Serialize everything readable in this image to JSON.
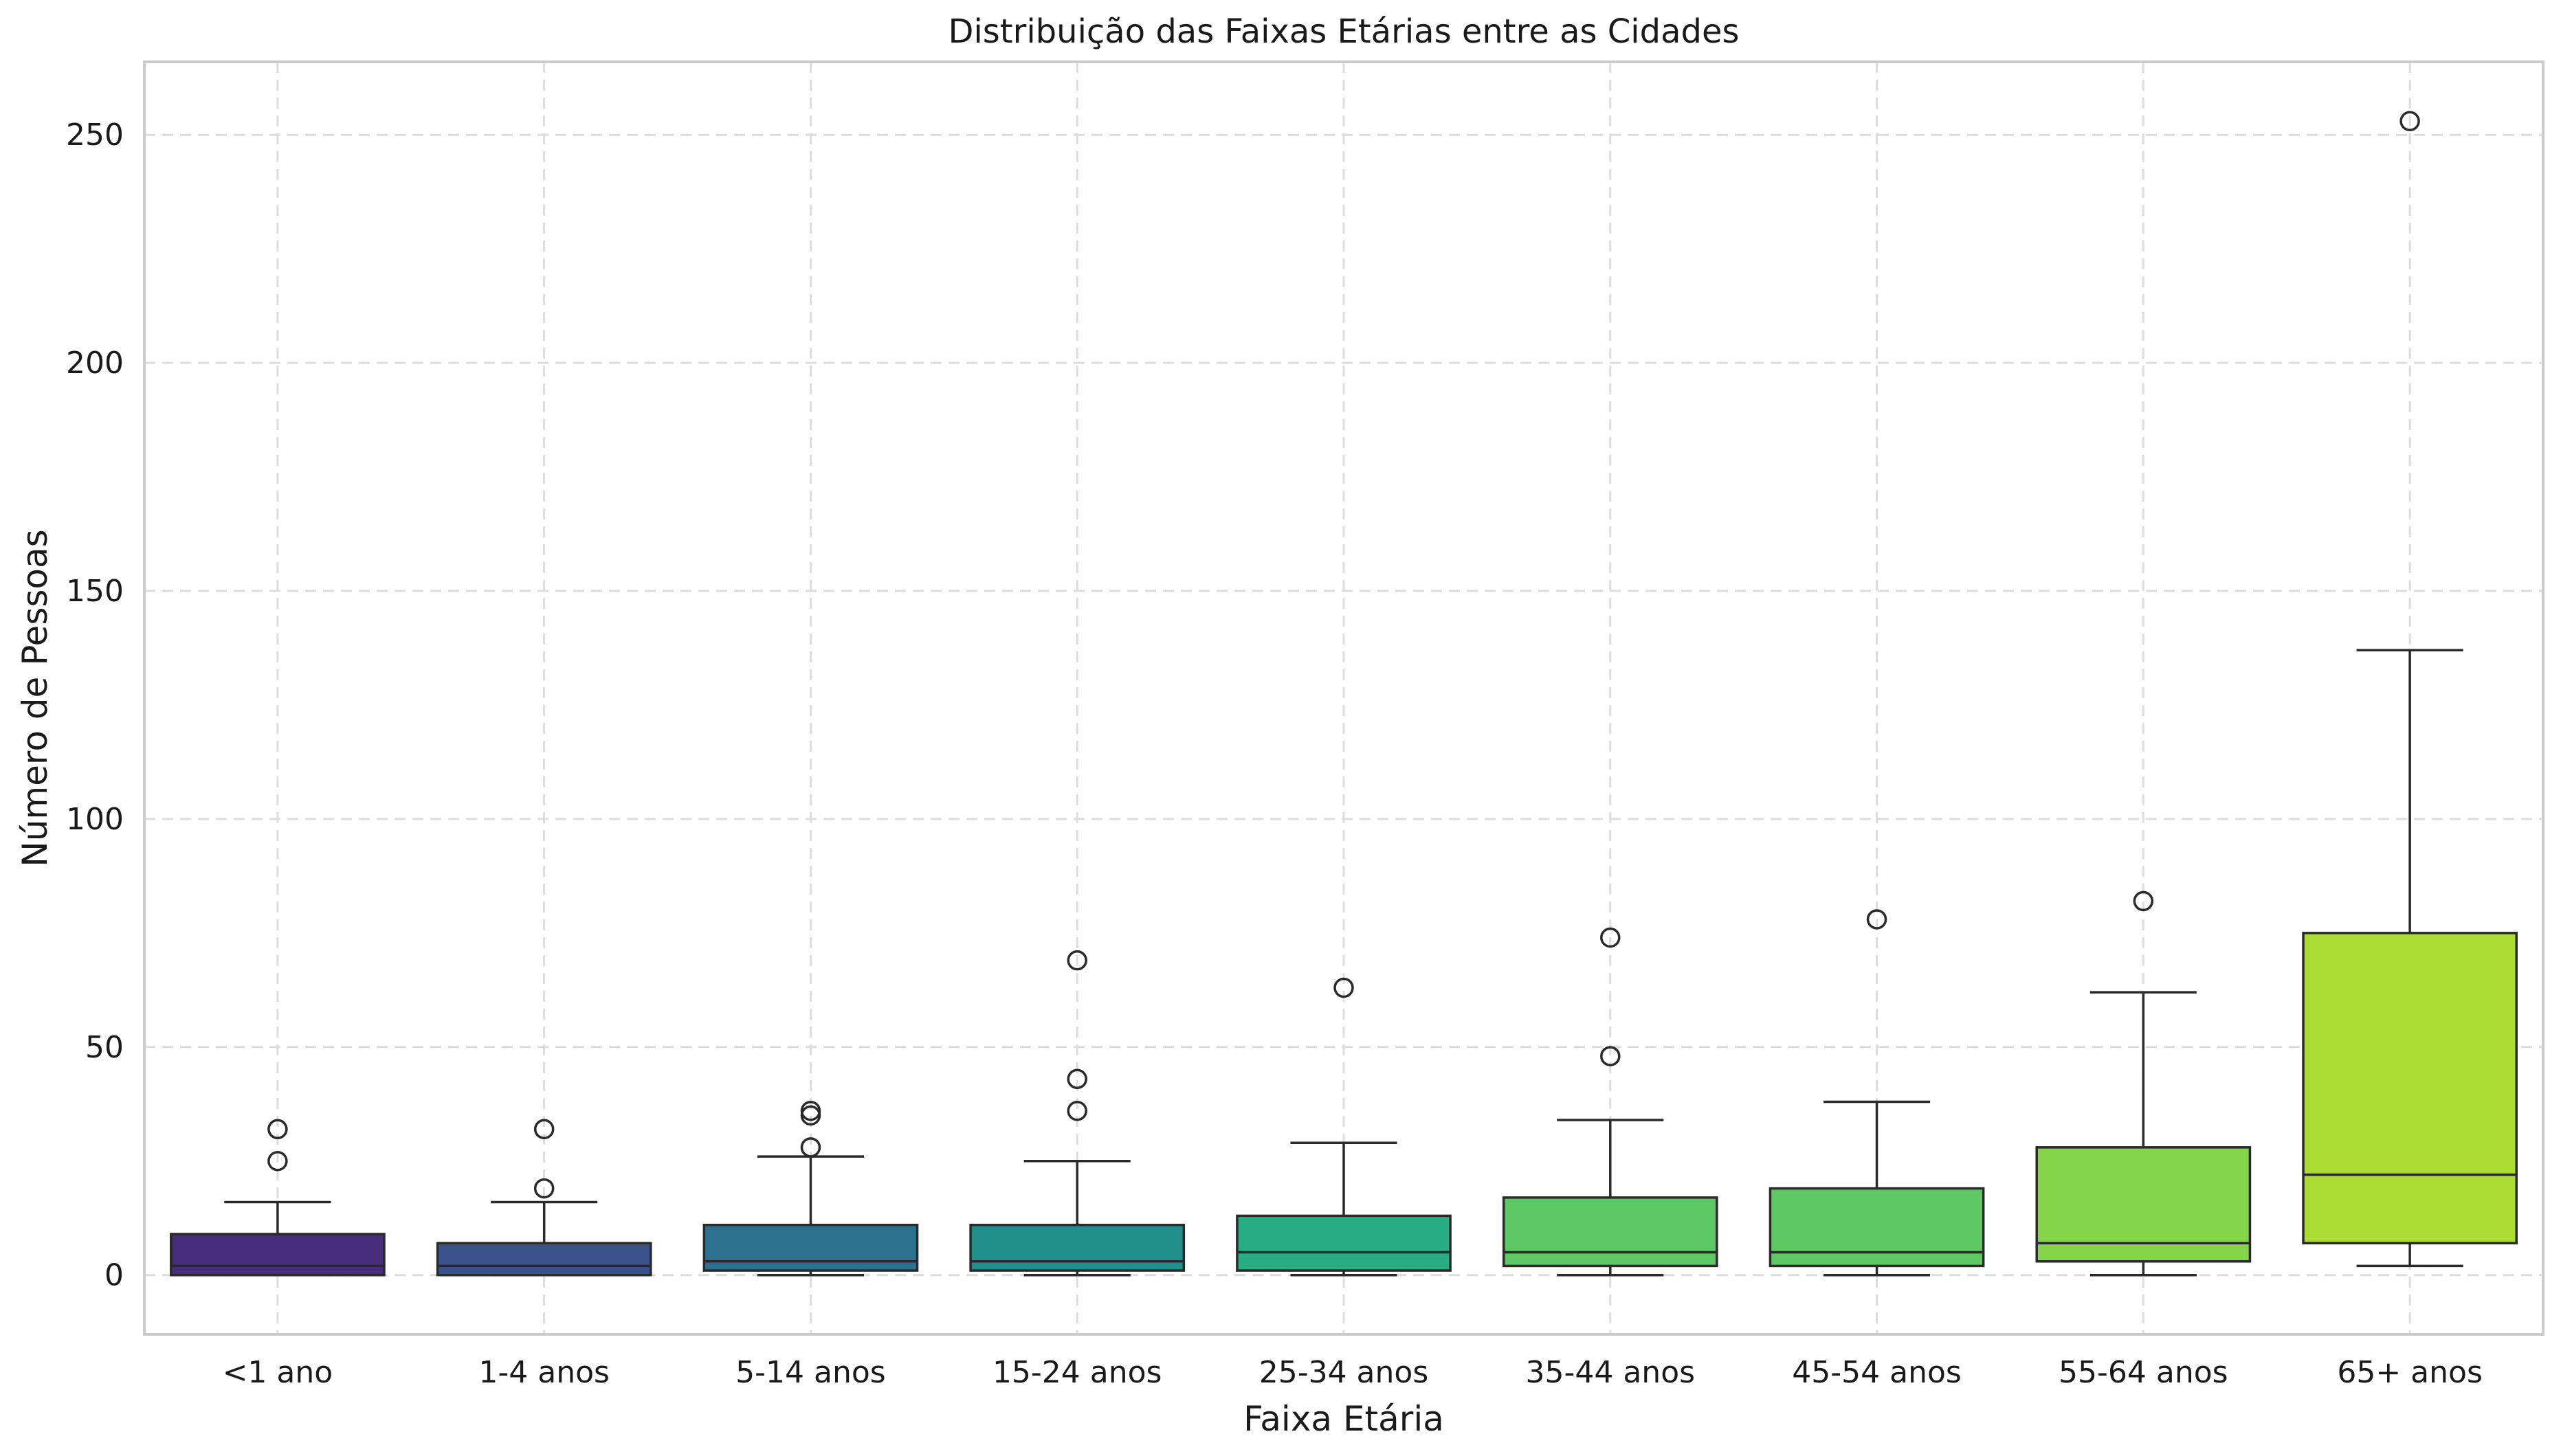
{
  "chart_data": {
    "type": "boxplot",
    "title": "Distribuição das Faixas Etárias entre as Cidades",
    "xlabel": "Faixa Etária",
    "ylabel": "Número de Pessoas",
    "ylim": [
      -13,
      266
    ],
    "yticks": [
      0,
      50,
      100,
      150,
      200,
      250
    ],
    "grid": true,
    "categories": [
      "<1 ano",
      "1-4 anos",
      "5-14 anos",
      "15-24 anos",
      "25-34 anos",
      "35-44 anos",
      "45-54 anos",
      "55-64 anos",
      "65+ anos"
    ],
    "boxes": [
      {
        "category": "<1 ano",
        "whisker_low": 0,
        "q1": 0,
        "median": 2,
        "q3": 9,
        "whisker_high": 16,
        "outliers": [
          25,
          32
        ],
        "color": "#472d7b"
      },
      {
        "category": "1-4 anos",
        "whisker_low": 0,
        "q1": 0,
        "median": 2,
        "q3": 7,
        "whisker_high": 16,
        "outliers": [
          19,
          32
        ],
        "color": "#3b518b"
      },
      {
        "category": "5-14 anos",
        "whisker_low": 0,
        "q1": 1,
        "median": 3,
        "q3": 11,
        "whisker_high": 26,
        "outliers": [
          28,
          35,
          36
        ],
        "color": "#2c718e"
      },
      {
        "category": "15-24 anos",
        "whisker_low": 0,
        "q1": 1,
        "median": 3,
        "q3": 11,
        "whisker_high": 25,
        "outliers": [
          36,
          43,
          69
        ],
        "color": "#21908d"
      },
      {
        "category": "25-34 anos",
        "whisker_low": 0,
        "q1": 1,
        "median": 5,
        "q3": 13,
        "whisker_high": 29,
        "outliers": [
          63
        ],
        "color": "#27ad81"
      },
      {
        "category": "35-44 anos",
        "whisker_low": 0,
        "q1": 2,
        "median": 5,
        "q3": 17,
        "whisker_high": 34,
        "outliers": [
          48,
          74
        ],
        "color": "#5cc863"
      },
      {
        "category": "45-54 anos",
        "whisker_low": 0,
        "q1": 2,
        "median": 5,
        "q3": 19,
        "whisker_high": 38,
        "outliers": [
          78
        ],
        "color": "#5ec962"
      },
      {
        "category": "55-64 anos",
        "whisker_low": 0,
        "q1": 3,
        "median": 7,
        "q3": 28,
        "whisker_high": 62,
        "outliers": [
          82
        ],
        "color": "#85d54a"
      },
      {
        "category": "65+ anos",
        "whisker_low": 2,
        "q1": 7,
        "median": 22,
        "q3": 75,
        "whisker_high": 137,
        "outliers": [
          253
        ],
        "color": "#aadc32"
      }
    ]
  }
}
